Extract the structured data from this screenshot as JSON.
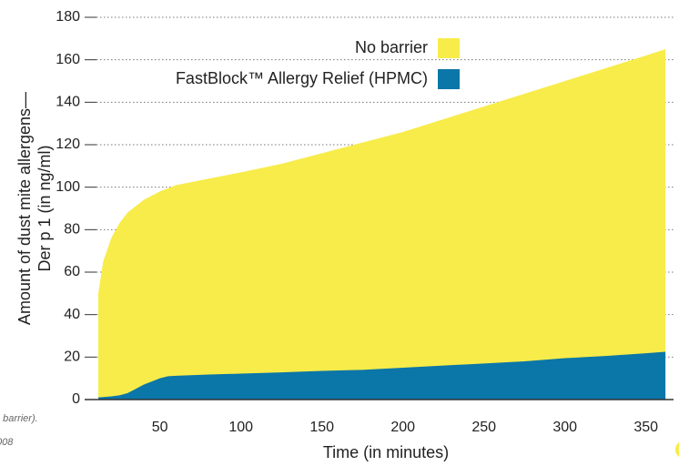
{
  "chart_data": {
    "type": "area",
    "xlabel": "Time (in minutes)",
    "ylabel": [
      "Amount of dust mite allergens—",
      "Der p 1 (in ng/ml)"
    ],
    "notes": [
      "o barrier).",
      "008"
    ],
    "x": [
      12,
      15,
      20,
      25,
      30,
      35,
      40,
      45,
      50,
      55,
      60,
      80,
      100,
      125,
      150,
      175,
      200,
      225,
      250,
      275,
      300,
      325,
      350,
      362
    ],
    "series": [
      {
        "name": "No barrier",
        "color": "#f7ec4a",
        "values": [
          50,
          65,
          76,
          83,
          88,
          91,
          94,
          96,
          98,
          99.5,
          101,
          104,
          107,
          111,
          116,
          121,
          126,
          132,
          138,
          144,
          150,
          156,
          162,
          165
        ]
      },
      {
        "name": "FastBlock™ Allergy Relief (HPMC)",
        "color": "#0b76a8",
        "values": [
          1,
          1.2,
          1.5,
          2,
          3,
          5,
          7,
          8.5,
          10,
          11,
          11.2,
          11.8,
          12.2,
          12.8,
          13.5,
          14,
          15,
          16,
          17,
          18,
          19.5,
          20.5,
          21.8,
          22.5
        ]
      }
    ],
    "xlim": [
      12,
      367
    ],
    "ylim": [
      0,
      180
    ],
    "xticks": [
      50,
      100,
      150,
      200,
      250,
      300,
      350
    ],
    "yticks": [
      0,
      20,
      40,
      60,
      80,
      100,
      120,
      140,
      160,
      180
    ],
    "grid": true,
    "legend": "top-right"
  }
}
